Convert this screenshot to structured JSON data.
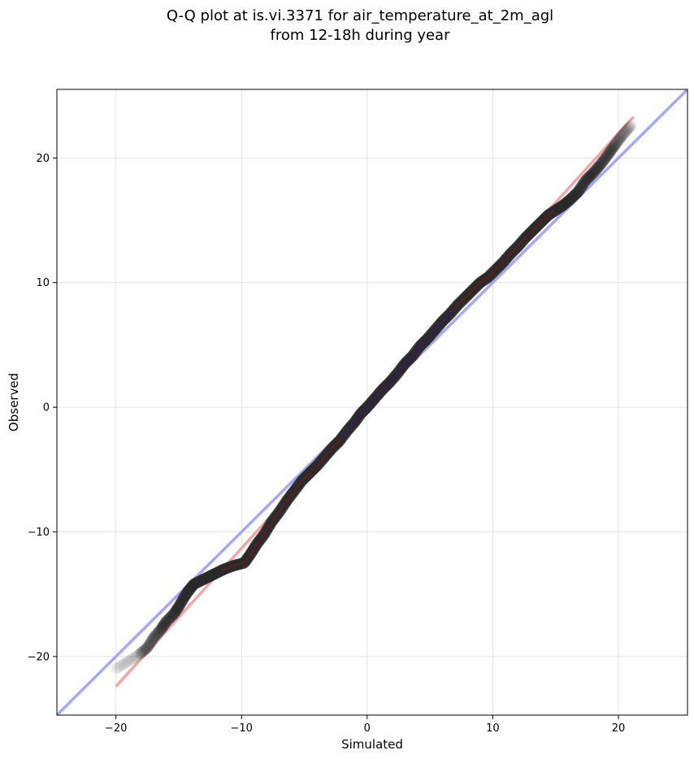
{
  "chart_data": {
    "type": "scatter",
    "title_line1": "Q-Q plot at is.vi.3371 for air_temperature_at_2m_agl",
    "title_line2": "from 12-18h during year",
    "xlabel": "Simulated",
    "ylabel": "Observed",
    "xlim": [
      -24.7,
      25.5
    ],
    "ylim": [
      -24.7,
      25.5
    ],
    "xticks": [
      -20,
      -10,
      0,
      10,
      20
    ],
    "yticks": [
      -20,
      -10,
      0,
      10,
      20
    ],
    "xtick_labels": [
      "−20",
      "−10",
      "0",
      "10",
      "20"
    ],
    "ytick_labels": [
      "−20",
      "−10",
      "0",
      "10",
      "20"
    ],
    "grid": true,
    "legend": "none",
    "reference_line": {
      "slope": 1,
      "intercept": 0,
      "color": "#a5a8f5"
    },
    "fit_line": {
      "x": [
        -20,
        21.2
      ],
      "y": [
        -22.4,
        23.3
      ],
      "color": "#f4a6a6"
    },
    "quantile_points": [
      [
        -20.0,
        -21.0
      ],
      [
        -18.1,
        -19.8
      ],
      [
        -17.5,
        -19.3
      ],
      [
        -17.0,
        -18.5
      ],
      [
        -16.4,
        -17.8
      ],
      [
        -16.0,
        -17.2
      ],
      [
        -15.4,
        -16.6
      ],
      [
        -15.0,
        -16.0
      ],
      [
        -14.6,
        -15.3
      ],
      [
        -14.2,
        -14.7
      ],
      [
        -13.8,
        -14.2
      ],
      [
        -13.2,
        -13.9
      ],
      [
        -12.6,
        -13.6
      ],
      [
        -12.0,
        -13.3
      ],
      [
        -11.4,
        -13.0
      ],
      [
        -10.6,
        -12.7
      ],
      [
        -9.8,
        -12.5
      ],
      [
        -9.3,
        -11.8
      ],
      [
        -8.8,
        -11.0
      ],
      [
        -8.2,
        -10.2
      ],
      [
        -7.6,
        -9.2
      ],
      [
        -7.0,
        -8.4
      ],
      [
        -6.4,
        -7.5
      ],
      [
        -5.8,
        -6.7
      ],
      [
        -5.2,
        -5.9
      ],
      [
        -4.6,
        -5.3
      ],
      [
        -4.0,
        -4.7
      ],
      [
        -3.4,
        -4.0
      ],
      [
        -2.8,
        -3.3
      ],
      [
        -2.2,
        -2.7
      ],
      [
        -1.6,
        -1.9
      ],
      [
        -1.0,
        -1.2
      ],
      [
        -0.5,
        -0.5
      ],
      [
        0.0,
        0.0
      ],
      [
        0.6,
        0.7
      ],
      [
        1.2,
        1.4
      ],
      [
        1.8,
        2.0
      ],
      [
        2.4,
        2.7
      ],
      [
        3.0,
        3.5
      ],
      [
        3.6,
        4.1
      ],
      [
        4.2,
        4.9
      ],
      [
        4.8,
        5.5
      ],
      [
        5.4,
        6.2
      ],
      [
        6.0,
        6.9
      ],
      [
        6.6,
        7.5
      ],
      [
        7.2,
        8.2
      ],
      [
        7.8,
        8.8
      ],
      [
        8.4,
        9.4
      ],
      [
        9.0,
        10.0
      ],
      [
        9.6,
        10.4
      ],
      [
        10.2,
        11.0
      ],
      [
        10.8,
        11.6
      ],
      [
        11.4,
        12.3
      ],
      [
        12.0,
        12.9
      ],
      [
        12.6,
        13.6
      ],
      [
        13.2,
        14.2
      ],
      [
        13.8,
        14.8
      ],
      [
        14.4,
        15.4
      ],
      [
        15.0,
        15.8
      ],
      [
        15.6,
        16.2
      ],
      [
        16.2,
        16.7
      ],
      [
        16.8,
        17.3
      ],
      [
        17.4,
        18.2
      ],
      [
        18.0,
        18.8
      ],
      [
        18.6,
        19.5
      ],
      [
        19.2,
        20.3
      ],
      [
        19.7,
        21.0
      ],
      [
        20.3,
        21.8
      ],
      [
        21.0,
        22.6
      ]
    ]
  }
}
